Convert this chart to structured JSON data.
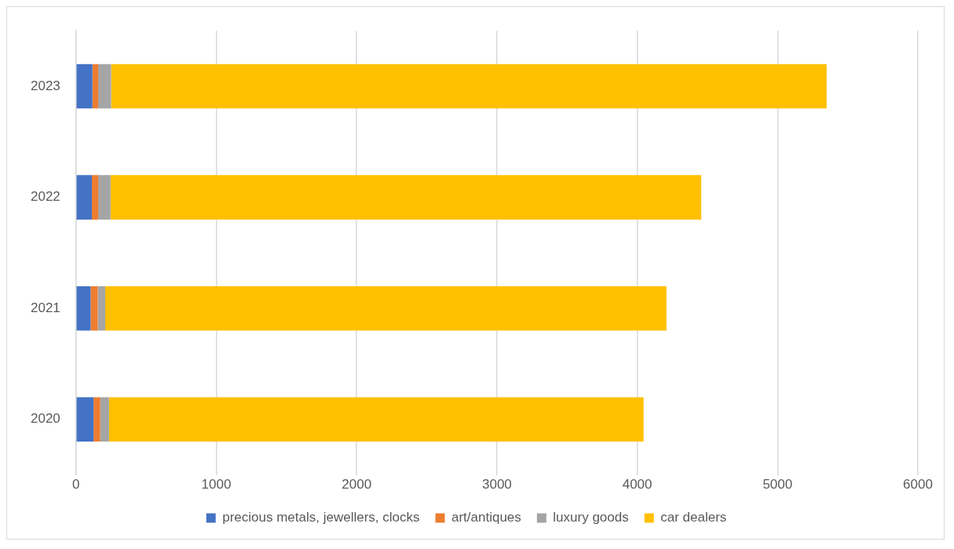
{
  "chart_data": {
    "type": "bar",
    "orientation": "horizontal",
    "stacked": true,
    "categories": [
      "2023",
      "2022",
      "2021",
      "2020"
    ],
    "series": [
      {
        "name": "precious metals, jewellers, clocks",
        "color": "#4472c4",
        "values": [
          117,
          113,
          104,
          125
        ]
      },
      {
        "name": "art/antiques",
        "color": "#ed7d31",
        "values": [
          41,
          45,
          51,
          48
        ]
      },
      {
        "name": "luxury goods",
        "color": "#a5a5a5",
        "values": [
          92,
          88,
          53,
          62
        ]
      },
      {
        "name": "car dealers",
        "color": "#ffc000",
        "values": [
          5100,
          4210,
          4000,
          3810
        ]
      }
    ],
    "xlim": [
      0,
      6000
    ],
    "xticks": [
      0,
      1000,
      2000,
      3000,
      4000,
      5000,
      6000
    ],
    "grid": "x",
    "legend": "bottom"
  }
}
